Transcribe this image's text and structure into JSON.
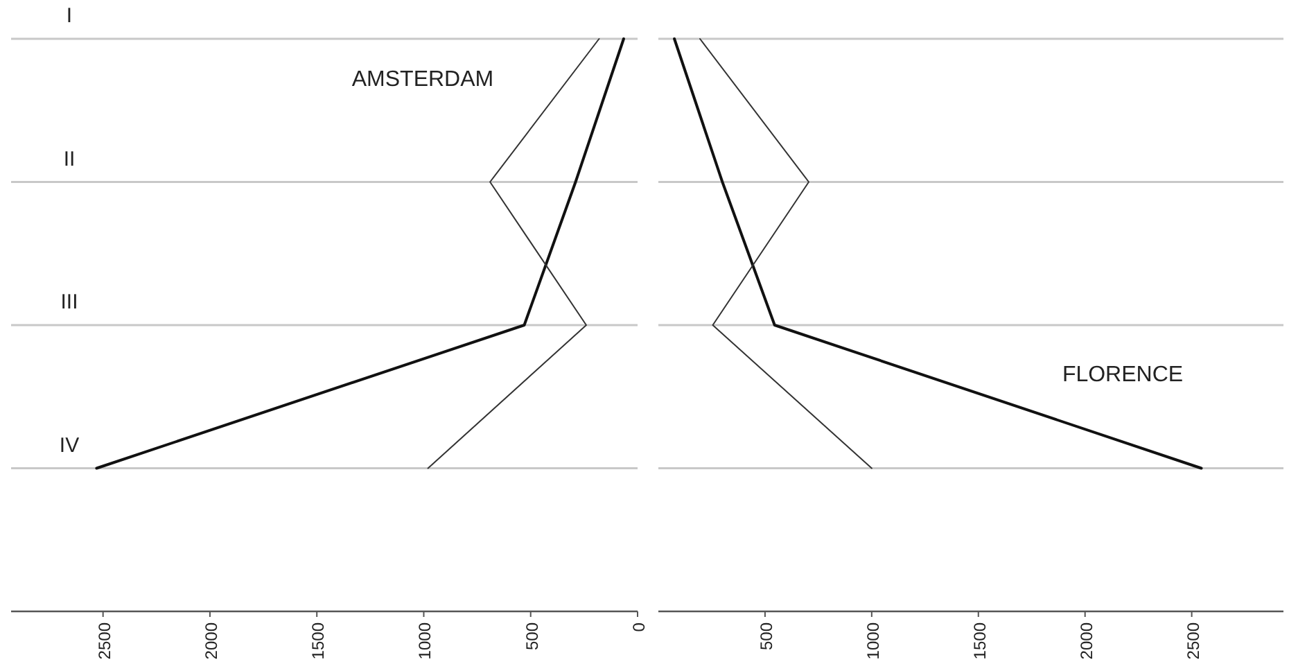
{
  "chart_data": [
    {
      "type": "line",
      "orientation": "horizontal",
      "title": "AMSTERDAM",
      "categories": [
        "I",
        "II",
        "III",
        "IV"
      ],
      "xlim": [
        2930,
        0
      ],
      "xticks": [
        2500,
        2000,
        1500,
        1000,
        500,
        0
      ],
      "grid": "y",
      "series": [
        {
          "color": "#111111",
          "values": [
            65,
            290,
            530,
            2530
          ]
        },
        {
          "color": "#333333",
          "values": [
            180,
            690,
            240,
            980
          ]
        }
      ]
    },
    {
      "type": "line",
      "orientation": "horizontal",
      "title": "FLORENCE",
      "categories": [
        null,
        null,
        null,
        null
      ],
      "xlim": [
        0,
        2930
      ],
      "xticks": [
        500,
        1000,
        1500,
        2000,
        2500
      ],
      "grid": "y",
      "series": [
        {
          "color": "#111111",
          "values": [
            75,
            300,
            545,
            2545
          ]
        },
        {
          "color": "#333333",
          "values": [
            195,
            705,
            255,
            1000
          ]
        }
      ]
    }
  ]
}
